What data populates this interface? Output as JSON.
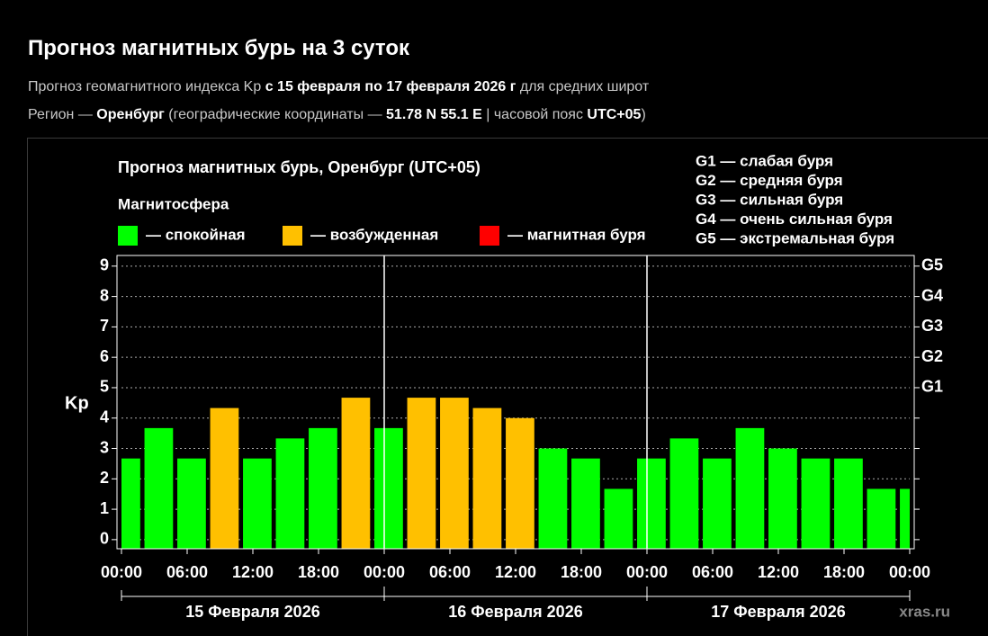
{
  "header": {
    "title": "Прогноз магнитных бурь на 3 суток",
    "line1": [
      {
        "text": "Прогноз геомагнитного индекса Kp ",
        "bold": false
      },
      {
        "text": "с 15 февраля по 17 февраля 2026 г",
        "bold": true
      },
      {
        "text": " для средних широт",
        "bold": false
      }
    ],
    "line2": [
      {
        "text": "Регион — ",
        "bold": false
      },
      {
        "text": "Оренбург",
        "bold": true
      },
      {
        "text": " (географические координаты — ",
        "bold": false
      },
      {
        "text": "51.78 N 55.1 E",
        "bold": true
      },
      {
        "text": " | часовой пояс ",
        "bold": false
      },
      {
        "text": "UTC+05",
        "bold": true
      },
      {
        "text": ")",
        "bold": false
      }
    ]
  },
  "chart_data": {
    "type": "bar",
    "title": "Прогноз магнитных бурь, Оренбург (UTC+05)",
    "subtitle": "Магнитосфера",
    "legend": [
      {
        "name": "— спокойная",
        "color": "#00ff00"
      },
      {
        "name": "— возбужденная",
        "color": "#ffc000"
      },
      {
        "name": "— магнитная буря",
        "color": "#ff0000"
      }
    ],
    "scale_notes": [
      "G1 — слабая буря",
      "G2 — средняя буря",
      "G3 — сильная буря",
      "G4 — очень сильная буря",
      "G5 — экстремальная буря"
    ],
    "ylabel": "Kp",
    "categories": [
      null,
      null,
      null,
      null,
      null,
      null,
      null,
      null,
      null,
      null,
      null,
      null,
      null,
      null,
      null,
      null,
      null,
      null,
      null,
      null,
      null,
      null,
      null,
      null,
      null
    ],
    "values": [
      2.67,
      3.67,
      2.67,
      4.33,
      2.67,
      3.33,
      3.67,
      4.67,
      3.67,
      4.67,
      4.67,
      4.33,
      4.0,
      3.0,
      2.67,
      1.67,
      2.67,
      3.33,
      2.67,
      3.67,
      3.0,
      2.67,
      2.67,
      1.67,
      1.67
    ],
    "colors": [
      "#00ff00",
      "#00ff00",
      "#00ff00",
      "#ffc000",
      "#00ff00",
      "#00ff00",
      "#00ff00",
      "#ffc000",
      "#00ff00",
      "#ffc000",
      "#ffc000",
      "#ffc000",
      "#ffc000",
      "#00ff00",
      "#00ff00",
      "#00ff00",
      "#00ff00",
      "#00ff00",
      "#00ff00",
      "#00ff00",
      "#00ff00",
      "#00ff00",
      "#00ff00",
      "#00ff00",
      "#00ff00"
    ],
    "xlim": [
      0,
      24
    ],
    "xticks": [
      {
        "value": 0,
        "label": "00:00"
      },
      {
        "value": 2,
        "label": "06:00"
      },
      {
        "value": 4,
        "label": "12:00"
      },
      {
        "value": 6,
        "label": "18:00"
      },
      {
        "value": 8,
        "label": "00:00"
      },
      {
        "value": 10,
        "label": "06:00"
      },
      {
        "value": 12,
        "label": "12:00"
      },
      {
        "value": 14,
        "label": "18:00"
      },
      {
        "value": 16,
        "label": "00:00"
      },
      {
        "value": 18,
        "label": "06:00"
      },
      {
        "value": 20,
        "label": "12:00"
      },
      {
        "value": 22,
        "label": "18:00"
      },
      {
        "value": 24,
        "label": "00:00"
      }
    ],
    "days": [
      "15 Февраля 2026",
      "16 Февраля 2026",
      "17 Февраля 2026"
    ],
    "ylim": [
      -0.3,
      9.35
    ],
    "yticks": [
      0,
      1,
      2,
      3,
      4,
      5,
      6,
      7,
      8,
      9
    ],
    "y2lim": [
      -0.3,
      9.35
    ],
    "y2ticks": [
      {
        "value": 5,
        "label": "G1"
      },
      {
        "value": 6,
        "label": "G2"
      },
      {
        "value": 7,
        "label": "G3"
      },
      {
        "value": 8,
        "label": "G4"
      },
      {
        "value": 9,
        "label": "G5"
      }
    ],
    "grid": true,
    "watermark": "xras.ru"
  }
}
